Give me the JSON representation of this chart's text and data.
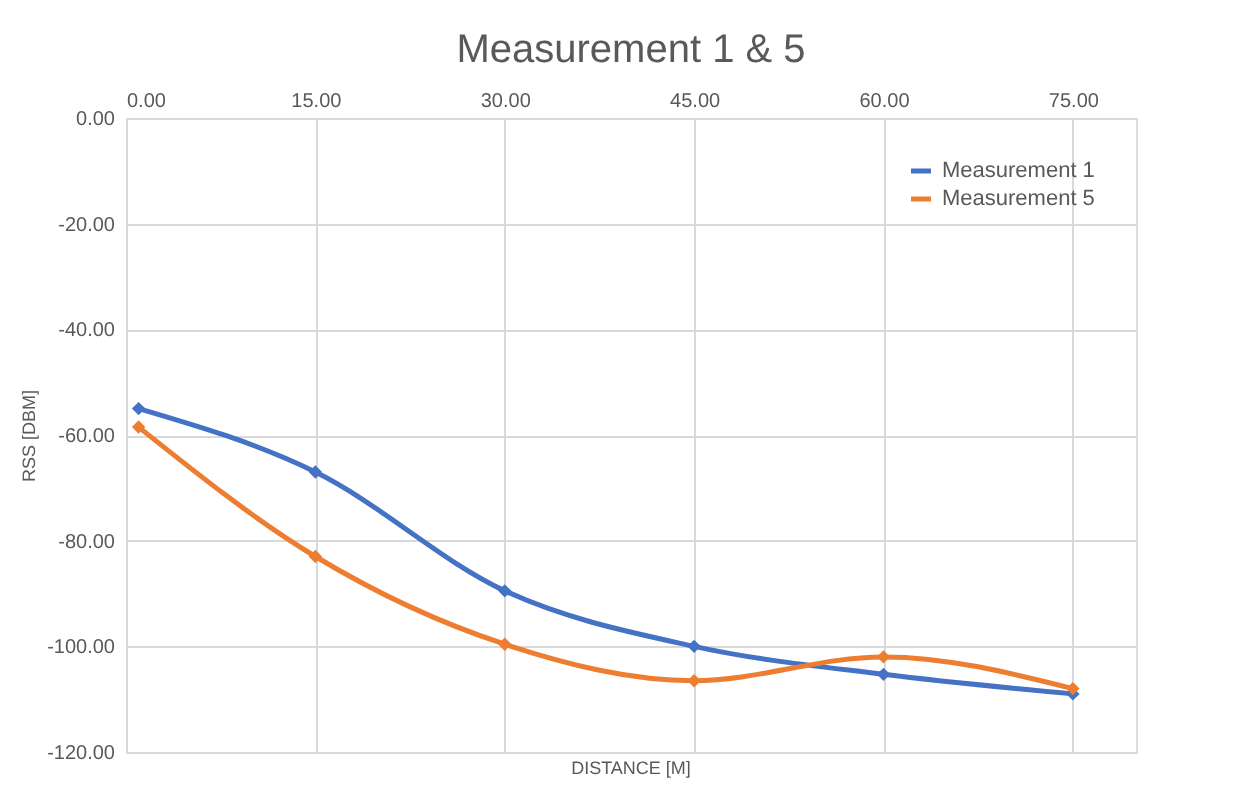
{
  "chart_data": {
    "type": "line",
    "title": "Measurement 1 & 5",
    "xlabel": "DISTANCE [M]",
    "ylabel": "RSS [DBM]",
    "x": [
      1,
      15,
      30,
      45,
      60,
      75
    ],
    "series": [
      {
        "name": "Measurement 1",
        "color": "#4472c4",
        "values": [
          -55,
          -67,
          -89.5,
          -100,
          -105.3,
          -109
        ]
      },
      {
        "name": "Measurement 5",
        "color": "#ed7d31",
        "values": [
          -58.5,
          -83,
          -99.6,
          -106.5,
          -102,
          -108
        ]
      }
    ],
    "xlim": [
      0,
      80
    ],
    "xticks": [
      {
        "value": 0,
        "label": "0.00"
      },
      {
        "value": 15,
        "label": "15.00"
      },
      {
        "value": 30,
        "label": "30.00"
      },
      {
        "value": 45,
        "label": "45.00"
      },
      {
        "value": 60,
        "label": "60.00"
      },
      {
        "value": 75,
        "label": "75.00"
      }
    ],
    "ylim": [
      -120,
      0
    ],
    "yticks": [
      {
        "value": -120,
        "label": "-120.00"
      },
      {
        "value": -100,
        "label": "-100.00"
      },
      {
        "value": -80,
        "label": "-80.00"
      },
      {
        "value": -60,
        "label": "-60.00"
      },
      {
        "value": -40,
        "label": "-40.00"
      },
      {
        "value": -20,
        "label": "-20.00"
      },
      {
        "value": 0,
        "label": "0.00"
      }
    ],
    "grid": true,
    "legend": "top right",
    "marker": "diamond",
    "line_style": "solid"
  }
}
